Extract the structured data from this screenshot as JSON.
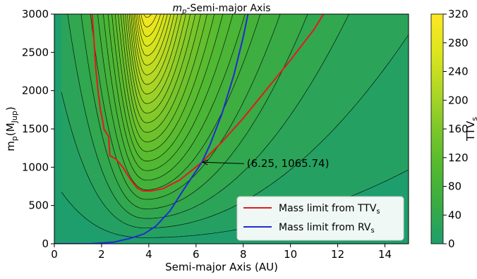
{
  "chart_data": {
    "type": "contour",
    "title_main": "m",
    "title_sub": "p",
    "title_rest": "-Semi-major Axis",
    "xlabel": "Semi-major Axis (AU)",
    "ylabel_main": "m",
    "ylabel_sub_1": "p",
    "ylabel_paren": "(M",
    "ylabel_sub_2": "Jup",
    "ylabel_close": ")",
    "xlim": [
      0,
      15
    ],
    "ylim": [
      0,
      3000
    ],
    "xticks": [
      "0",
      "2",
      "4",
      "6",
      "8",
      "10",
      "12",
      "14"
    ],
    "yticks": [
      "0",
      "500",
      "1000",
      "1500",
      "2000",
      "2500",
      "3000"
    ],
    "colorbar": {
      "label_main": "TTV",
      "label_sub": "s",
      "range": [
        0,
        320
      ],
      "ticks": [
        "0",
        "40",
        "80",
        "120",
        "160",
        "200",
        "240",
        "280",
        "320"
      ],
      "colors": [
        "#1e9e6c",
        "#39ab44",
        "#52b930",
        "#7cc72a",
        "#b0d725",
        "#dde61c",
        "#fde725"
      ]
    },
    "annotation": {
      "text": "(6.25, 1065.74)",
      "point": [
        6.25,
        1065.74
      ],
      "text_pos": [
        8.15,
        1065.74
      ]
    },
    "series": [
      {
        "name": "Mass limit from TTV",
        "name_sub": "s",
        "color": "#e31a1c",
        "points": [
          [
            1.6,
            3000
          ],
          [
            1.65,
            2800
          ],
          [
            1.7,
            2550
          ],
          [
            1.75,
            2300
          ],
          [
            1.85,
            2000
          ],
          [
            1.95,
            1750
          ],
          [
            2.05,
            1600
          ],
          [
            2.1,
            1500
          ],
          [
            2.3,
            1400
          ],
          [
            2.35,
            1150
          ],
          [
            2.6,
            1110
          ],
          [
            2.9,
            1000
          ],
          [
            3.2,
            850
          ],
          [
            3.5,
            730
          ],
          [
            3.75,
            690
          ],
          [
            4.1,
            690
          ],
          [
            4.6,
            720
          ],
          [
            5.3,
            830
          ],
          [
            6.25,
            1065.74
          ],
          [
            7.1,
            1330
          ],
          [
            8.0,
            1640
          ],
          [
            9.0,
            2020
          ],
          [
            10.0,
            2400
          ],
          [
            11.0,
            2800
          ],
          [
            11.4,
            3000
          ]
        ]
      },
      {
        "name": "Mass limit from RV",
        "name_sub": "s",
        "color": "#1f2bd6",
        "points": [
          [
            0,
            0
          ],
          [
            1.5,
            0
          ],
          [
            2.5,
            20
          ],
          [
            3.2,
            70
          ],
          [
            3.8,
            130
          ],
          [
            4.3,
            230
          ],
          [
            4.9,
            430
          ],
          [
            5.5,
            720
          ],
          [
            6.0,
            950
          ],
          [
            6.25,
            1065.74
          ],
          [
            6.6,
            1300
          ],
          [
            7.1,
            1700
          ],
          [
            7.6,
            2200
          ],
          [
            8.0,
            2700
          ],
          [
            8.2,
            3000
          ]
        ]
      }
    ]
  }
}
